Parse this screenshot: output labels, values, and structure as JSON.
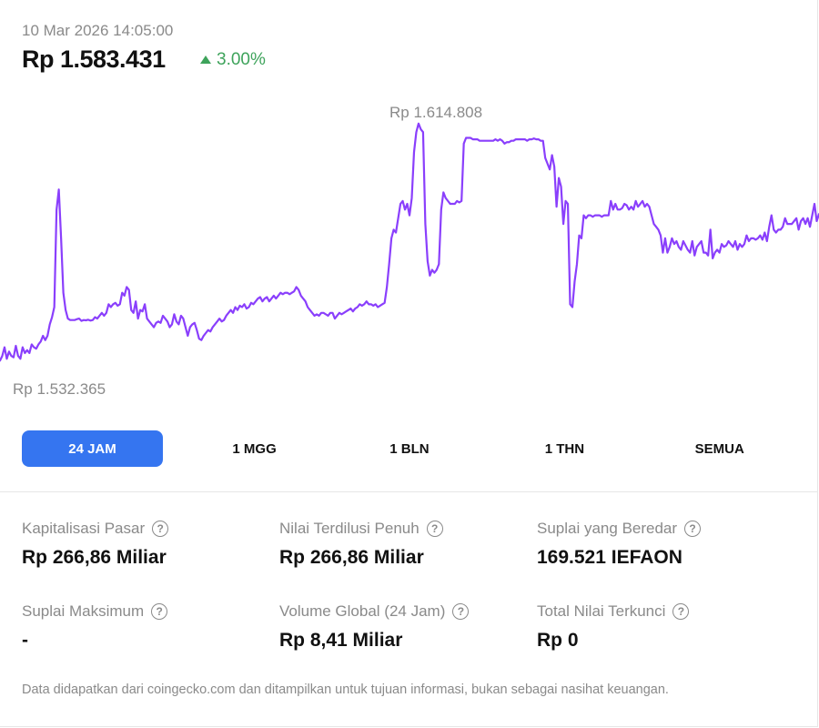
{
  "header": {
    "timestamp": "10 Mar 2026 14:05:00",
    "price": "Rp 1.583.431",
    "change": "3.00%"
  },
  "chart_data": {
    "type": "line",
    "title": "",
    "xlabel": "",
    "ylabel": "",
    "ylim": [
      1528000,
      1620000
    ],
    "max_label": "Rp 1.614.808",
    "min_label": "Rp 1.532.365",
    "series": [
      {
        "color": "#8a3ffc",
        "values": [
          1532365,
          1534000,
          1537000,
          1533000,
          1535500,
          1534000,
          1533500,
          1537500,
          1534000,
          1533000,
          1537000,
          1535000,
          1536000,
          1535000,
          1538000,
          1537000,
          1536500,
          1538000,
          1539000,
          1541000,
          1539500,
          1541000,
          1545000,
          1547500,
          1551000,
          1585000,
          1592000,
          1575000,
          1556000,
          1550000,
          1547000,
          1546500,
          1546500,
          1546500,
          1546800,
          1547000,
          1546200,
          1546500,
          1546400,
          1546600,
          1546300,
          1546500,
          1547500,
          1547000,
          1548000,
          1549000,
          1548000,
          1549000,
          1552000,
          1551000,
          1552000,
          1552500,
          1551500,
          1552000,
          1556000,
          1555000,
          1558000,
          1557000,
          1550000,
          1549000,
          1553000,
          1547000,
          1550000,
          1549500,
          1552000,
          1547000,
          1546000,
          1545000,
          1544000,
          1545500,
          1546000,
          1545500,
          1548000,
          1547000,
          1546000,
          1544000,
          1545000,
          1548500,
          1546000,
          1545000,
          1548000,
          1547000,
          1544000,
          1541000,
          1544000,
          1545000,
          1545500,
          1543000,
          1540000,
          1539500,
          1541000,
          1542000,
          1543000,
          1542500,
          1544000,
          1545000,
          1546000,
          1547000,
          1546000,
          1546500,
          1548000,
          1549000,
          1550000,
          1549000,
          1551000,
          1550000,
          1551500,
          1551000,
          1552000,
          1550500,
          1551000,
          1552500,
          1552000,
          1553000,
          1554000,
          1554500,
          1553000,
          1554000,
          1554500,
          1553000,
          1554000,
          1555000,
          1554000,
          1555000,
          1556000,
          1555500,
          1556000,
          1556000,
          1555500,
          1556000,
          1556500,
          1558000,
          1557000,
          1555000,
          1554000,
          1553000,
          1551000,
          1550000,
          1549000,
          1548000,
          1548500,
          1548000,
          1549000,
          1549000,
          1548500,
          1548000,
          1549000,
          1549000,
          1547000,
          1548000,
          1549000,
          1548500,
          1549000,
          1549500,
          1550000,
          1550500,
          1549500,
          1550500,
          1551000,
          1552000,
          1551500,
          1552000,
          1553000,
          1552000,
          1552000,
          1551500,
          1552000,
          1551000,
          1551500,
          1552000,
          1552500,
          1558000,
          1566000,
          1575000,
          1578000,
          1577000,
          1582000,
          1587000,
          1588000,
          1585000,
          1587000,
          1583000,
          1589000,
          1605000,
          1612000,
          1615000,
          1613000,
          1612000,
          1580000,
          1567000,
          1562000,
          1564000,
          1563000,
          1564000,
          1566000,
          1585000,
          1591000,
          1589000,
          1588000,
          1587000,
          1587000,
          1587000,
          1588000,
          1587500,
          1588000,
          1608000,
          1610000,
          1610000,
          1610000,
          1609500,
          1609500,
          1609500,
          1609000,
          1609000,
          1609000,
          1609000,
          1609000,
          1609000,
          1609000,
          1609500,
          1609000,
          1609500,
          1609000,
          1608000,
          1608500,
          1608500,
          1609000,
          1609000,
          1609500,
          1609500,
          1609500,
          1609500,
          1609500,
          1609000,
          1609500,
          1609500,
          1609800,
          1609500,
          1609500,
          1609000,
          1609000,
          1603000,
          1601000,
          1599000,
          1604000,
          1600000,
          1586000,
          1596000,
          1593000,
          1580000,
          1588000,
          1587000,
          1552000,
          1551000,
          1560000,
          1566000,
          1576000,
          1575000,
          1583000,
          1582000,
          1583000,
          1583000,
          1582500,
          1583000,
          1583000,
          1583000,
          1582500,
          1583000,
          1583000,
          1583000,
          1588000,
          1585000,
          1587000,
          1585000,
          1585000,
          1585500,
          1587000,
          1586500,
          1585000,
          1586000,
          1585000,
          1588000,
          1586000,
          1587000,
          1588000,
          1586000,
          1587000,
          1586000,
          1583000,
          1580000,
          1579000,
          1578000,
          1576000,
          1570000,
          1575000,
          1570000,
          1572000,
          1575000,
          1573000,
          1574000,
          1572000,
          1571000,
          1574000,
          1572500,
          1571000,
          1570000,
          1574000,
          1569000,
          1572000,
          1573000,
          1574000,
          1570000,
          1570000,
          1569000,
          1578000,
          1568000,
          1570000,
          1571000,
          1570000,
          1573000,
          1572000,
          1572500,
          1574000,
          1573000,
          1572000,
          1574000,
          1571000,
          1573000,
          1572000,
          1573000,
          1576000,
          1574000,
          1575000,
          1575000,
          1574500,
          1575000,
          1576000,
          1574500,
          1577000,
          1574000,
          1579000,
          1583000,
          1578000,
          1577000,
          1578000,
          1578000,
          1579000,
          1582000,
          1580000,
          1580000,
          1580000,
          1581000,
          1582000,
          1578000,
          1581000,
          1582000,
          1580000,
          1582000,
          1579000,
          1583000,
          1587000,
          1581000,
          1583431
        ]
      }
    ]
  },
  "ranges": {
    "r24": "24 JAM",
    "r1w": "1 MGG",
    "r1m": "1 BLN",
    "r1y": "1 THN",
    "rall": "SEMUA"
  },
  "stats": {
    "market_cap_label": "Kapitalisasi Pasar",
    "market_cap_value": "Rp 266,86 Miliar",
    "fdv_label": "Nilai Terdilusi Penuh",
    "fdv_value": "Rp 266,86 Miliar",
    "circ_label": "Suplai yang Beredar",
    "circ_value": "169.521 IEFAON",
    "max_label": "Suplai Maksimum",
    "max_value": "-",
    "vol_label": "Volume Global (24 Jam)",
    "vol_value": "Rp 8,41 Miliar",
    "tvl_label": "Total Nilai Terkunci",
    "tvl_value": "Rp 0",
    "help_glyph": "?"
  },
  "footer": {
    "note": "Data didapatkan dari coingecko.com dan ditampilkan untuk tujuan informasi, bukan sebagai nasihat keuangan."
  },
  "colors": {
    "accent": "#3575f0",
    "positive": "#3ea35b",
    "line": "#8a3ffc"
  }
}
